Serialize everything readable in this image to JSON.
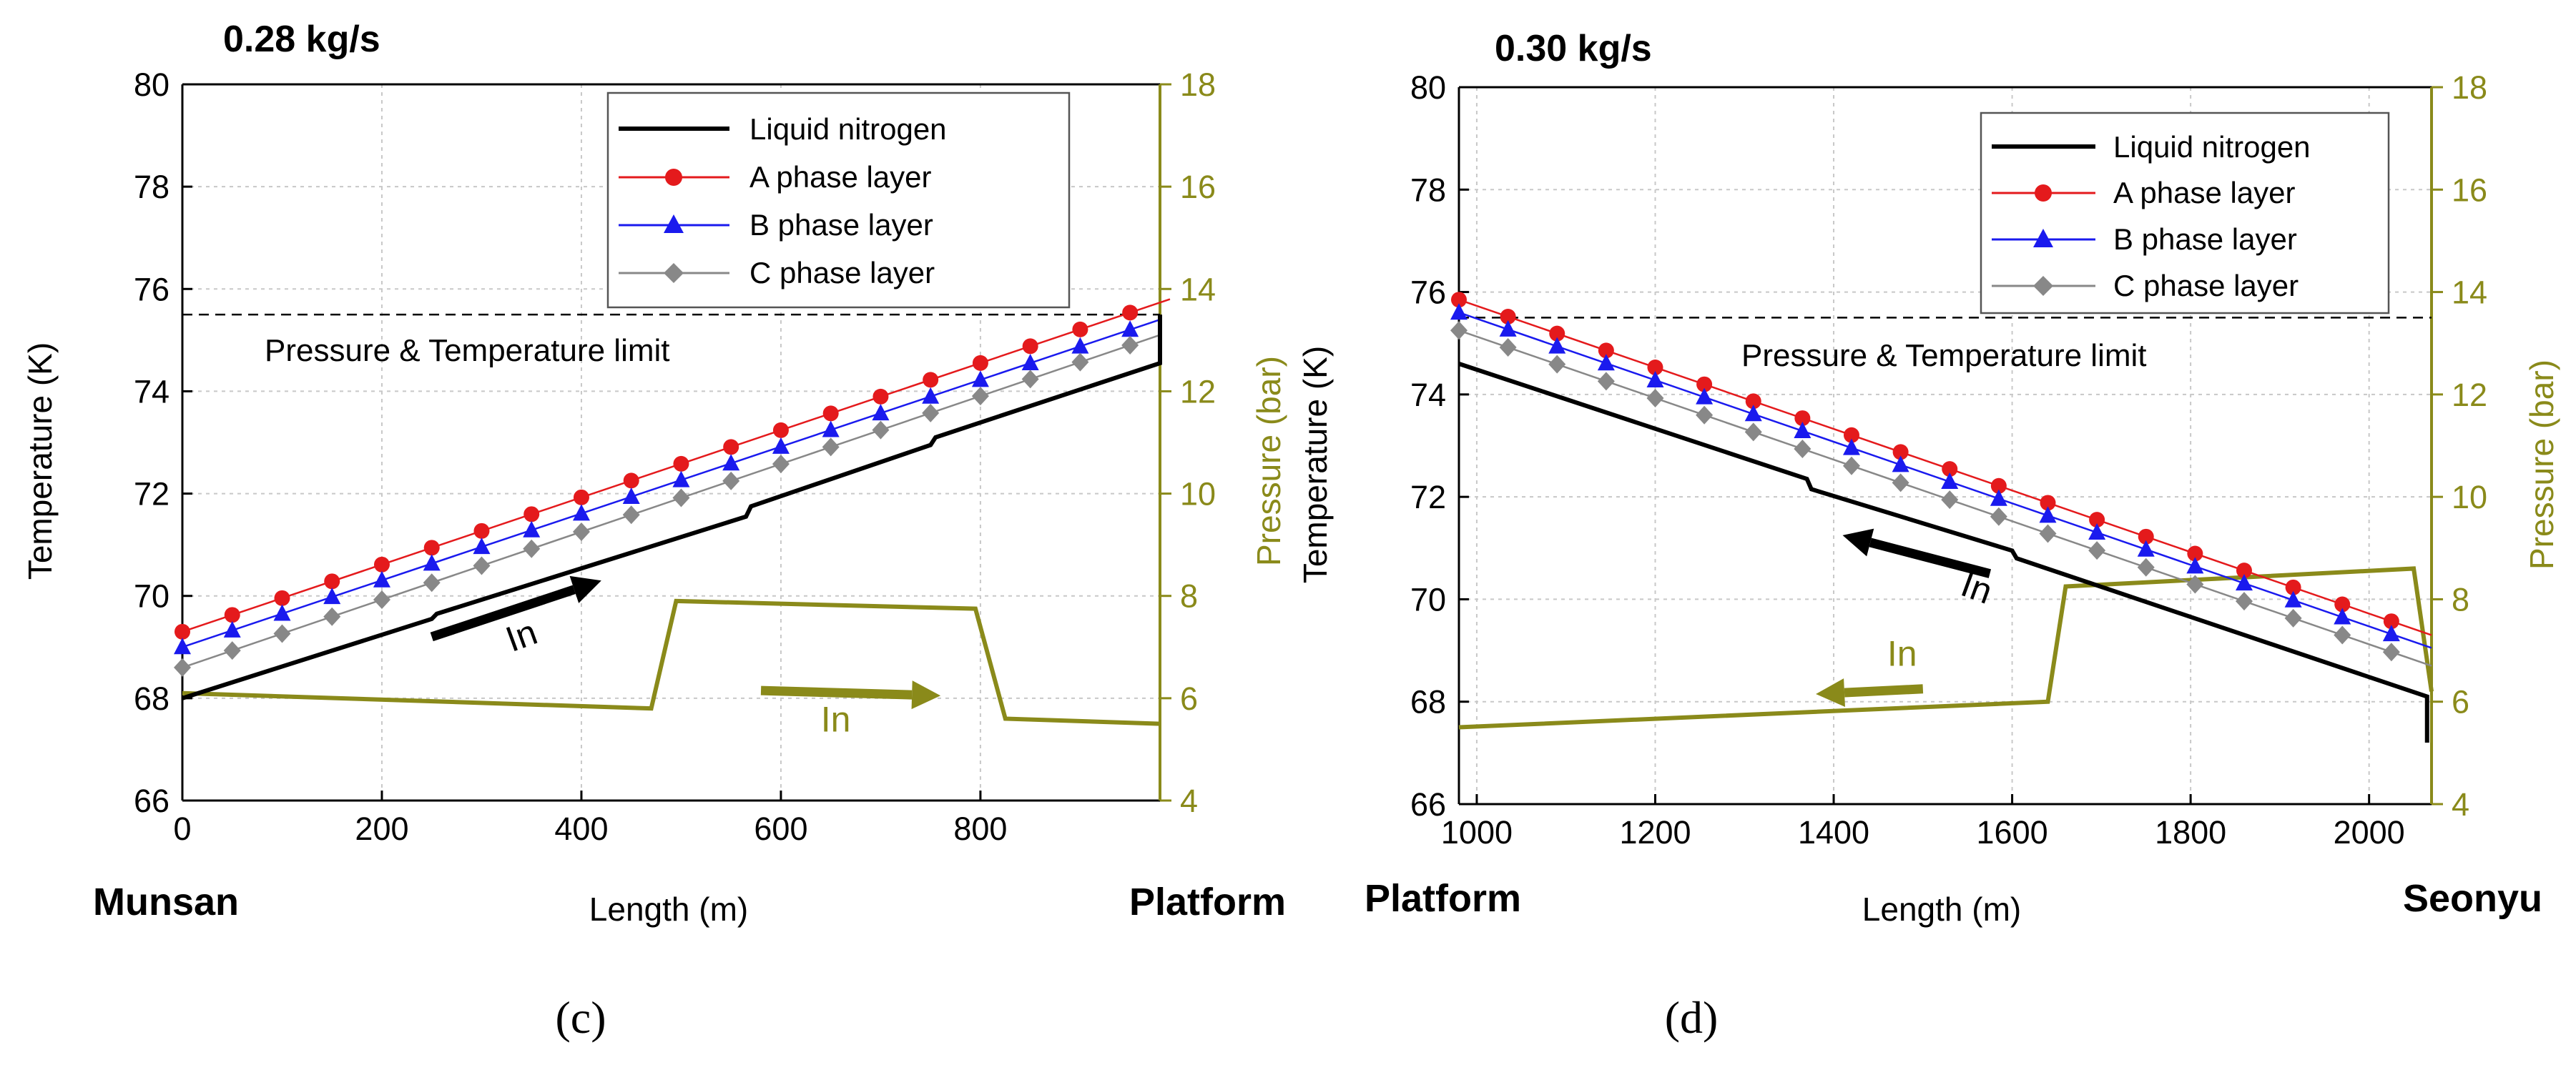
{
  "colors": {
    "liquid_nitrogen": "#000000",
    "a_phase": "#e41a1c",
    "b_phase": "#1a1aee",
    "c_phase": "#888888",
    "pressure": "#8a8a1a",
    "grid": "#c8c8c8"
  },
  "chart_data": [
    {
      "panel_label": "(c)",
      "type": "line",
      "flow_rate": "0.28 kg/s",
      "xlabel": "Length (m)",
      "ylabel": "Temperature (K)",
      "y2label": "Pressure (bar)",
      "xlim": [
        0,
        980
      ],
      "ylim": [
        66,
        80
      ],
      "y2lim": [
        4,
        18
      ],
      "x_ticks": [
        0,
        200,
        400,
        600,
        800
      ],
      "x_tick_labels": [
        "0",
        "200",
        "400",
        "600",
        "800"
      ],
      "y_ticks": [
        66,
        68,
        70,
        72,
        74,
        76,
        78,
        80
      ],
      "y_tick_labels": [
        "66",
        "68",
        "70",
        "72",
        "74",
        "76",
        "78",
        "80"
      ],
      "y2_ticks": [
        4,
        6,
        8,
        10,
        12,
        14,
        16,
        18
      ],
      "y2_tick_labels": [
        "4",
        "6",
        "8",
        "10",
        "12",
        "14",
        "16",
        "18"
      ],
      "left_station": "Munsan",
      "right_station": "Platform",
      "limit_value": 75.5,
      "limit_label": "Pressure & Temperature limit",
      "legend": {
        "liquid": "Liquid nitrogen",
        "a": "A phase layer",
        "b": "B phase layer",
        "c": "C phase layer"
      },
      "in_black": "In",
      "in_olive": "In",
      "series": [
        {
          "name": "Liquid nitrogen",
          "x": [
            0,
            250,
            255,
            565,
            570,
            750,
            755,
            980,
            980
          ],
          "y": [
            68.0,
            69.55,
            69.65,
            71.55,
            71.75,
            72.95,
            73.1,
            74.55,
            75.5
          ]
        },
        {
          "name": "A phase layer",
          "x0": 0,
          "x1": 990,
          "y0": 69.3,
          "y1": 75.8,
          "marker_step": 50
        },
        {
          "name": "B phase layer",
          "x0": 0,
          "x1": 980,
          "y0": 69.0,
          "y1": 75.4,
          "marker_step": 50
        },
        {
          "name": "C phase layer",
          "x0": 0,
          "x1": 980,
          "y0": 68.6,
          "y1": 75.1,
          "marker_step": 50
        }
      ],
      "pressure": {
        "x": [
          0,
          470,
          495,
          795,
          825,
          980
        ],
        "y": [
          6.1,
          5.8,
          7.9,
          7.75,
          5.6,
          5.5
        ]
      },
      "arrow_black": {
        "x": [
          250,
          420
        ],
        "y": [
          69.2,
          70.3
        ]
      },
      "arrow_olive": {
        "x": [
          580,
          760
        ],
        "y2": [
          6.15,
          6.05
        ]
      },
      "in_black_pos": {
        "x": 330,
        "y": 68.9
      },
      "in_olive_pos": {
        "x": 640,
        "y2": 5.35
      }
    },
    {
      "panel_label": "(d)",
      "type": "line",
      "flow_rate": "0.30 kg/s",
      "xlabel": "Length (m)",
      "ylabel": "Temperature (K)",
      "y2label": "Pressure (bar)",
      "xlim": [
        980,
        2070
      ],
      "ylim": [
        66,
        80
      ],
      "y2lim": [
        4,
        18
      ],
      "x_ticks": [
        1000,
        1200,
        1400,
        1600,
        1800,
        2000
      ],
      "x_tick_labels": [
        "1000",
        "1200",
        "1400",
        "1600",
        "1800",
        "2000"
      ],
      "y_ticks": [
        66,
        68,
        70,
        72,
        74,
        76,
        78,
        80
      ],
      "y_tick_labels": [
        "66",
        "68",
        "70",
        "72",
        "74",
        "76",
        "78",
        "80"
      ],
      "y2_ticks": [
        4,
        6,
        8,
        10,
        12,
        14,
        16,
        18
      ],
      "y2_tick_labels": [
        "4",
        "6",
        "8",
        "10",
        "12",
        "14",
        "16",
        "18"
      ],
      "left_station": "Platform",
      "right_station": "Seonyu",
      "limit_value": 75.5,
      "limit_label": "Pressure & Temperature limit",
      "legend": {
        "liquid": "Liquid nitrogen",
        "a": "A phase layer",
        "b": "B phase layer",
        "c": "C phase layer"
      },
      "in_black": "In",
      "in_olive": "In",
      "series": [
        {
          "name": "Liquid nitrogen",
          "x": [
            980,
            1370,
            1375,
            1600,
            1605,
            2065,
            2065
          ],
          "y": [
            74.6,
            72.35,
            72.15,
            70.95,
            70.8,
            68.1,
            67.2
          ]
        },
        {
          "name": "A phase layer",
          "x0": 980,
          "x1": 2070,
          "y0": 75.85,
          "y1": 69.3,
          "marker_step": 55
        },
        {
          "name": "B phase layer",
          "x0": 980,
          "x1": 2070,
          "y0": 75.6,
          "y1": 69.05,
          "marker_step": 55
        },
        {
          "name": "C phase layer",
          "x0": 980,
          "x1": 2070,
          "y0": 75.25,
          "y1": 68.7,
          "marker_step": 55
        }
      ],
      "pressure": {
        "x": [
          980,
          1640,
          1660,
          2050,
          2070
        ],
        "y": [
          5.5,
          6.0,
          8.25,
          8.6,
          6.2
        ]
      },
      "arrow_black": {
        "x": [
          1575,
          1410
        ],
        "y": [
          70.5,
          71.25
        ]
      },
      "arrow_olive": {
        "x": [
          1500,
          1380
        ],
        "y2": [
          6.25,
          6.15
        ]
      },
      "in_black_pos": {
        "x": 1540,
        "y": 70.1
      },
      "in_olive_pos": {
        "x": 1460,
        "y2": 6.7
      }
    }
  ]
}
